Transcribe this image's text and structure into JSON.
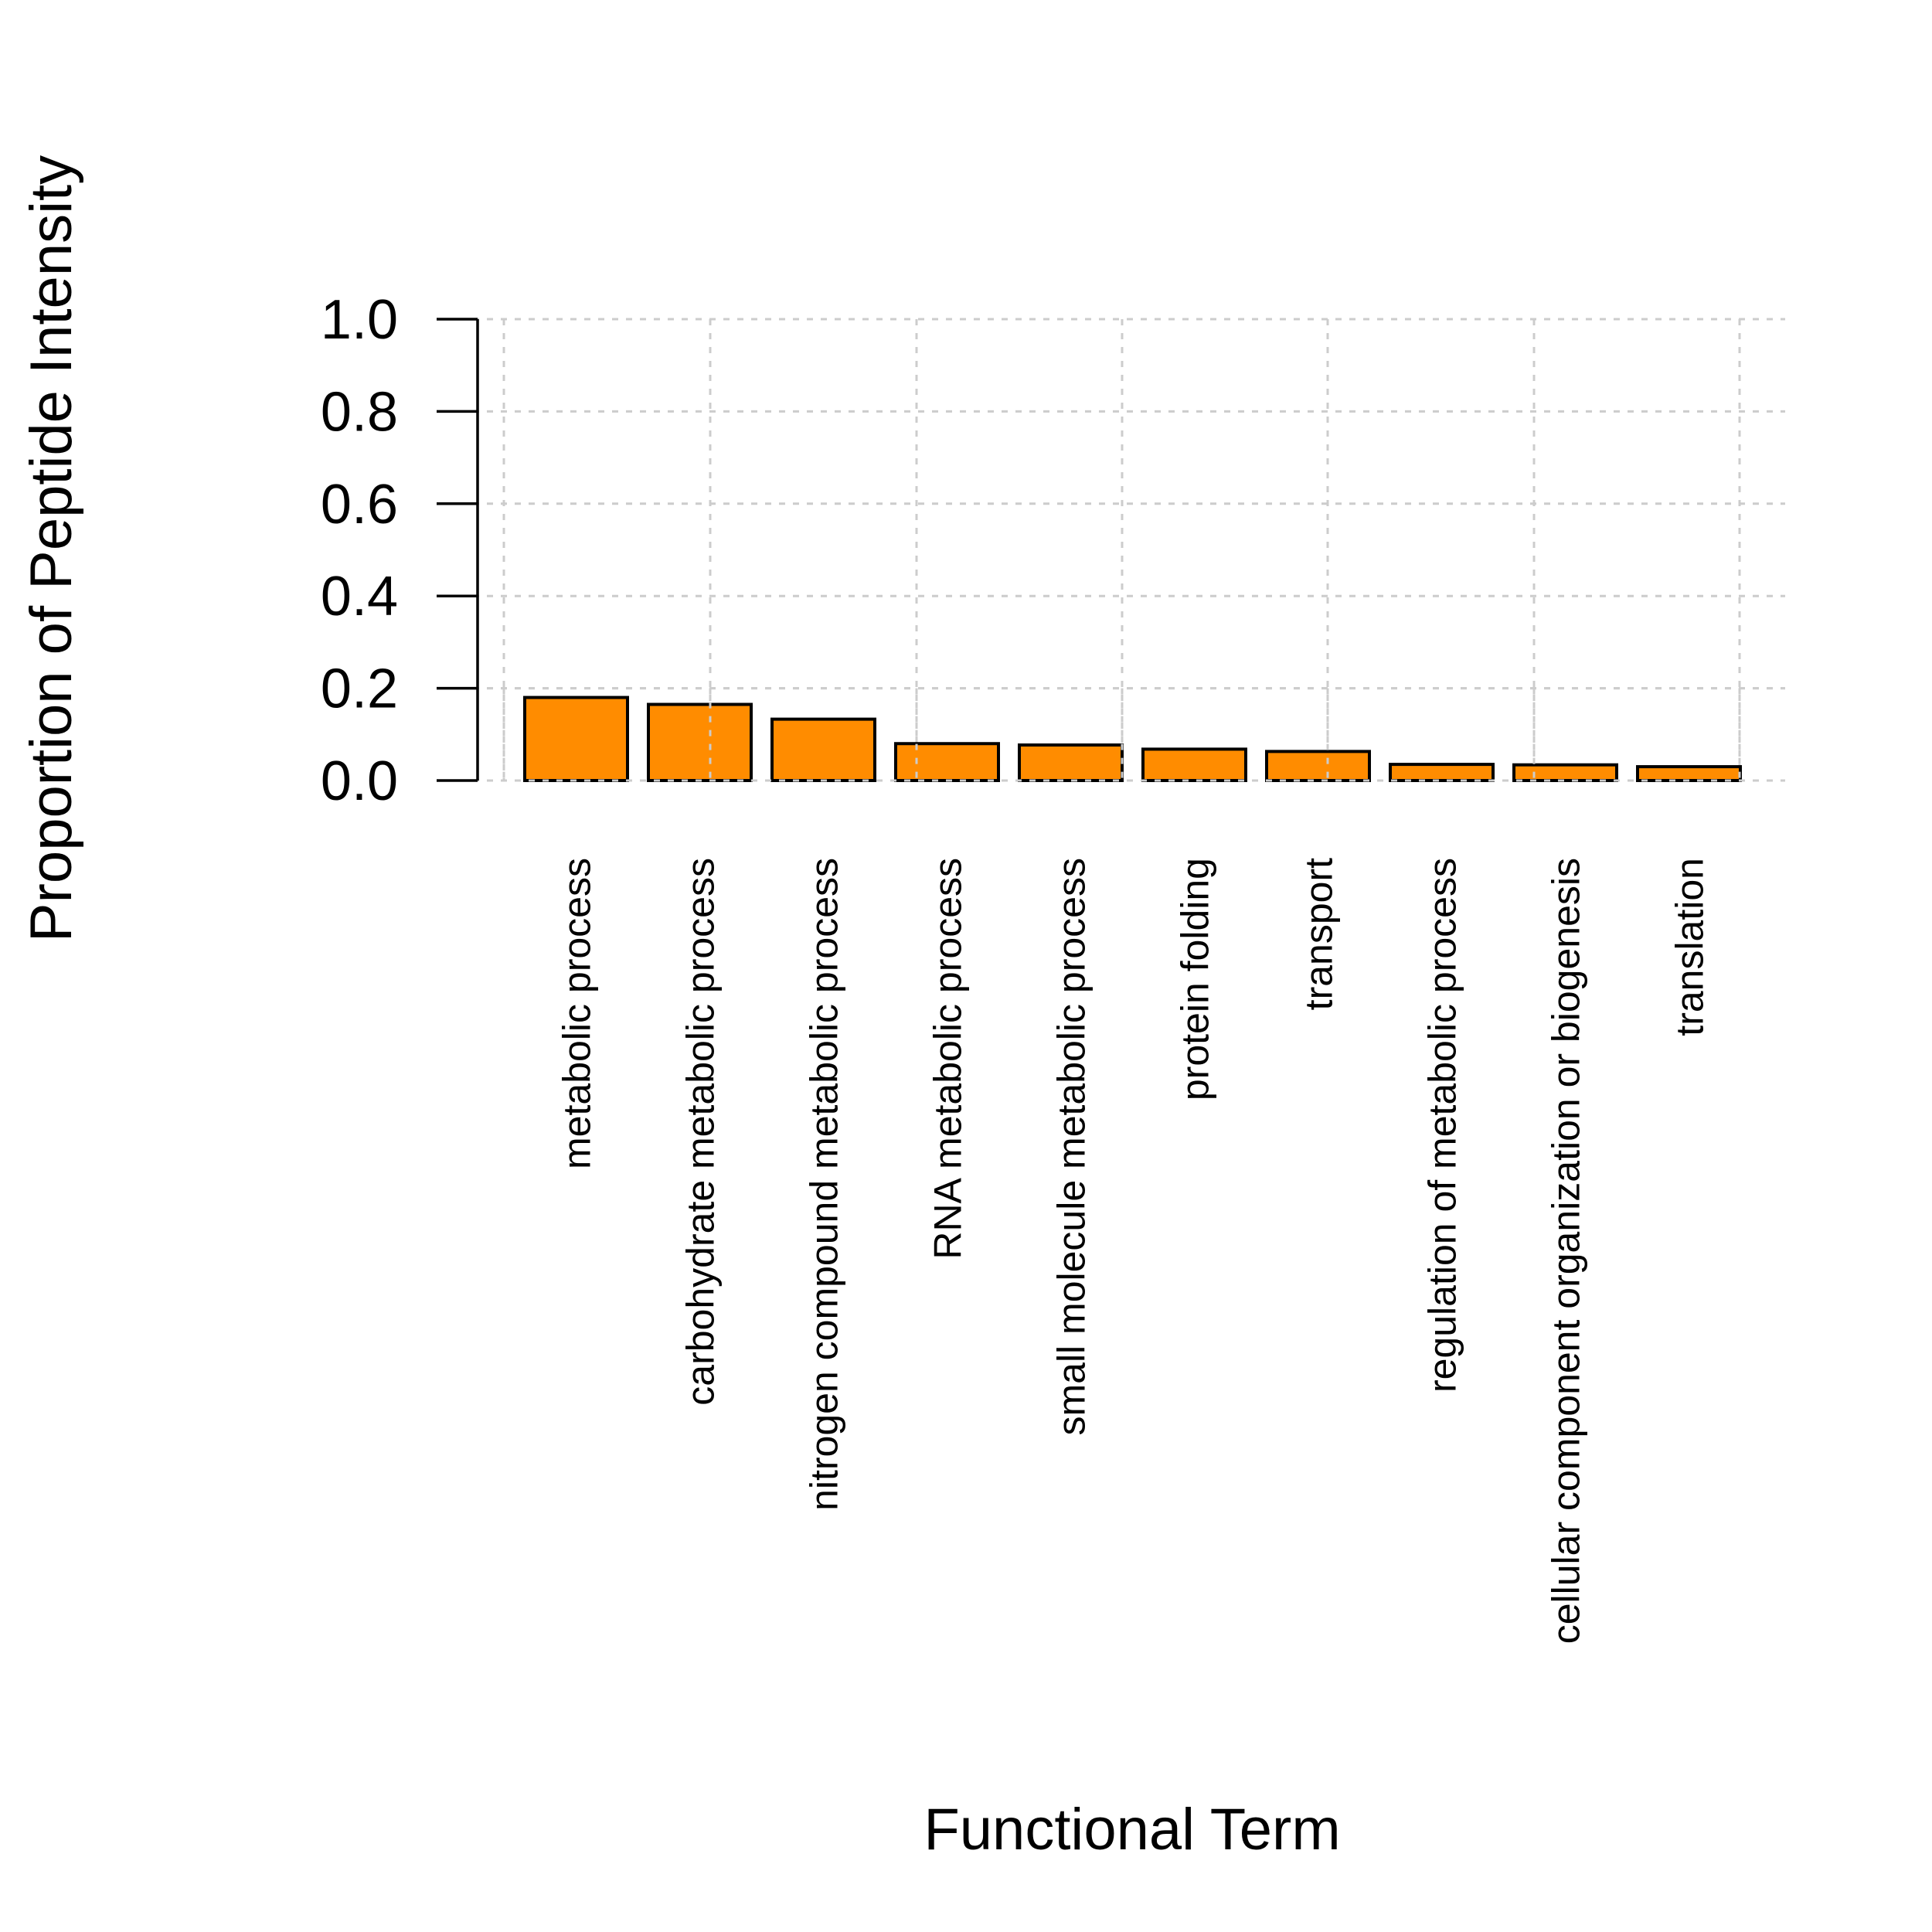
{
  "chart_data": {
    "type": "bar",
    "title": "",
    "xlabel": "Functional Term",
    "ylabel": "Proportion of Peptide Intensity",
    "ylim": [
      0,
      1
    ],
    "yticks": [
      "0.0",
      "0.2",
      "0.4",
      "0.6",
      "0.8",
      "1.0"
    ],
    "grid": true,
    "bar_color": "#FF8C00",
    "categories": [
      "metabolic process",
      "carbohydrate metabolic process",
      "nitrogen compound metabolic process",
      "RNA metabolic process",
      "small molecule metabolic process",
      "protein folding",
      "transport",
      "regulation of metabolic process",
      "cellular component organization or biogenesis",
      "translation"
    ],
    "values": [
      0.18,
      0.165,
      0.133,
      0.08,
      0.077,
      0.068,
      0.063,
      0.035,
      0.034,
      0.03
    ]
  }
}
